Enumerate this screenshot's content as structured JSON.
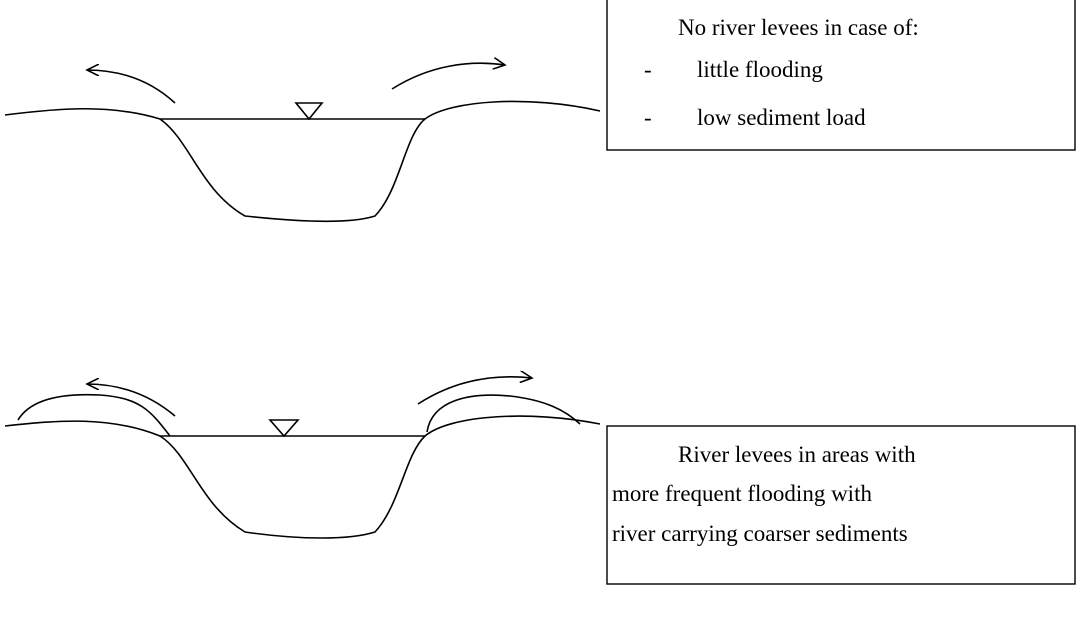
{
  "diagrams": [
    {
      "caption": "No river levees in case of:",
      "items": [
        {
          "marker": "-",
          "text": "little flooding"
        },
        {
          "marker": "-",
          "text": "low sediment load"
        }
      ]
    },
    {
      "caption_lines": [
        "River levees in areas with",
        "more frequent flooding with",
        "river carrying coarser sediments"
      ]
    }
  ]
}
